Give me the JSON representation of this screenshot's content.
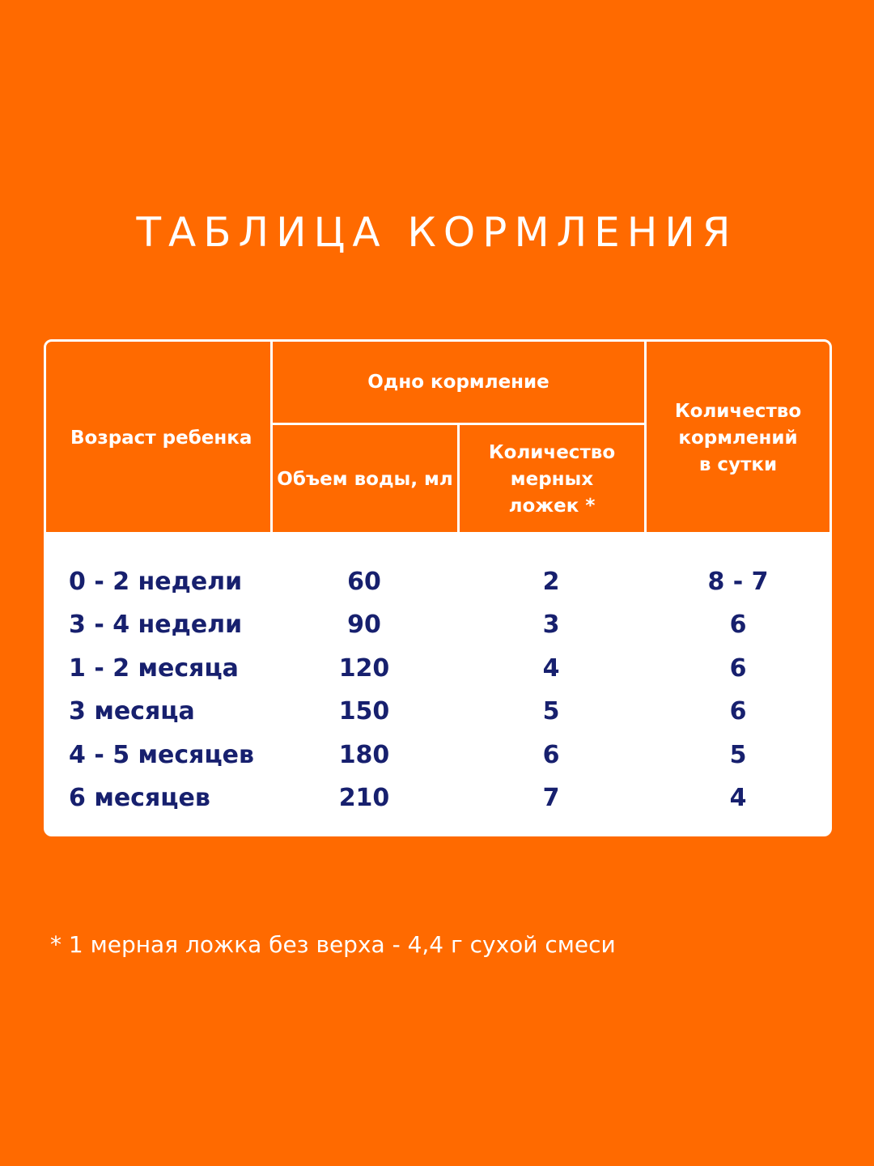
{
  "title": "ТАБЛИЦА КОРМЛЕНИЯ",
  "table": {
    "headers": {
      "age": "Возраст ребенка",
      "one_feeding": "Одно кормление",
      "water": "Объем воды, мл",
      "spoons": "Количество мерных ложек *",
      "feedings_per_day": "Количество кормлений в сутки"
    },
    "rows": [
      [
        "0 - 2 недели",
        60,
        2,
        "8 - 7"
      ],
      [
        "3 - 4 недели",
        90,
        3,
        6
      ],
      [
        "1 - 2 месяца",
        120,
        4,
        6
      ],
      [
        "3 месяца",
        150,
        5,
        6
      ],
      [
        "4 - 5 месяцев",
        180,
        6,
        5
      ],
      [
        "6 месяцев",
        210,
        7,
        4
      ]
    ]
  },
  "footnote": "* 1 мерная ложка без верха - 4,4 г сухой смеси"
}
